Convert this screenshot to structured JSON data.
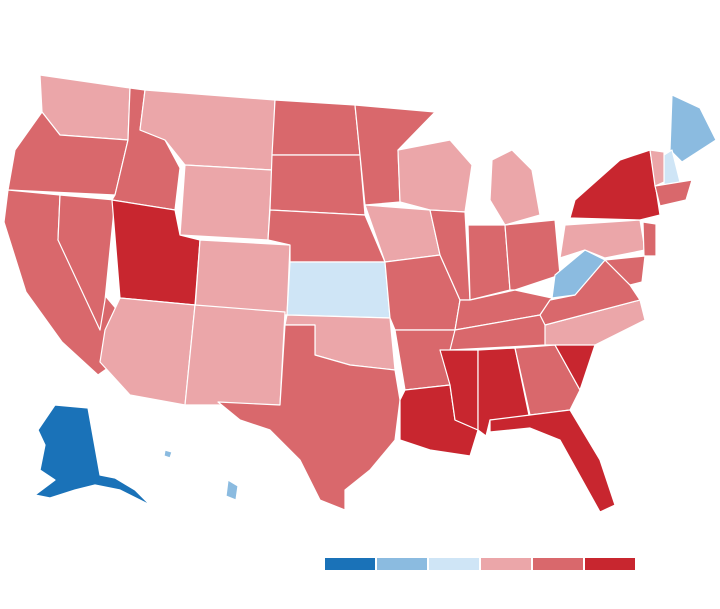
{
  "map": {
    "regions": [
      {
        "color": "#eba6a9"
      },
      {
        "color": "#d9686c"
      },
      {
        "color": "#d9686c"
      },
      {
        "color": "#d9686c"
      },
      {
        "color": "#d9686c"
      },
      {
        "color": "#eba6a9"
      },
      {
        "color": "#eba6a9"
      },
      {
        "color": "#c8262f"
      },
      {
        "color": "#eba6a9"
      },
      {
        "color": "#eba6a9"
      },
      {
        "color": "#eba6a9"
      },
      {
        "color": "#d9686c"
      },
      {
        "color": "#d9686c"
      },
      {
        "color": "#d9686c"
      },
      {
        "color": "#cfe5f6"
      },
      {
        "color": "#eba6a9"
      },
      {
        "color": "#d9686c"
      },
      {
        "color": "#d9686c"
      },
      {
        "color": "#eba6a9"
      },
      {
        "color": "#d9686c"
      },
      {
        "color": "#d9686c"
      },
      {
        "color": "#c8262f"
      },
      {
        "color": "#eba6a9"
      },
      {
        "color": "#d9686c"
      },
      {
        "color": "#eba6a9"
      },
      {
        "color": "#d9686c"
      },
      {
        "color": "#d9686c"
      },
      {
        "color": "#d9686c"
      },
      {
        "color": "#d9686c"
      },
      {
        "color": "#c8262f"
      },
      {
        "color": "#c8262f"
      },
      {
        "color": "#d9686c"
      },
      {
        "color": "#c8262f"
      },
      {
        "color": "#c8262f"
      },
      {
        "color": "#eba6a9"
      },
      {
        "color": "#d9686c"
      },
      {
        "color": "#8bbbe0"
      },
      {
        "color": "#eba6a9"
      },
      {
        "color": "#c8262f"
      },
      {
        "color": "#8bbbe0"
      },
      {
        "color": "#cfe5f6"
      },
      {
        "color": "#eba6a9"
      },
      {
        "color": "#d9686c"
      },
      {
        "color": "#d9686c"
      },
      {
        "color": "#d9686c"
      },
      {
        "color": "#1a72b8"
      },
      {
        "color": "#8bbbe0"
      },
      {
        "color": "#8bbbe0"
      }
    ],
    "legend": [
      {
        "color": "#1a72b8"
      },
      {
        "color": "#8bbbe0"
      },
      {
        "color": "#cfe5f6"
      },
      {
        "color": "#eba6a9"
      },
      {
        "color": "#d9686c"
      },
      {
        "color": "#c8262f"
      }
    ]
  }
}
